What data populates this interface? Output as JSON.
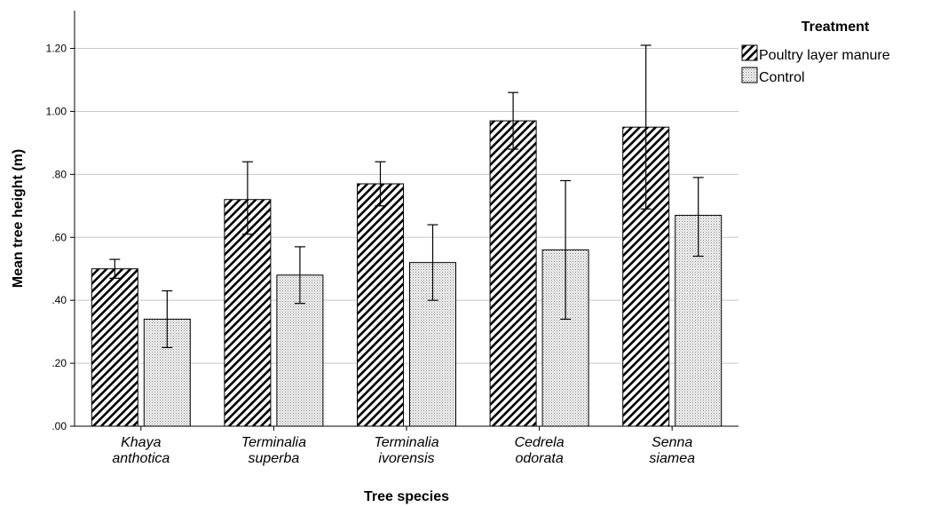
{
  "chart_data": {
    "type": "bar",
    "xlabel": "Tree species",
    "ylabel": "Mean tree height (m)",
    "ylim": [
      0,
      1.32
    ],
    "yticks": [
      0,
      0.2,
      0.4,
      0.6,
      0.8,
      1.0,
      1.2
    ],
    "ytick_labels": [
      ".00",
      ".20",
      ".40",
      ".60",
      ".80",
      "1.00",
      "1.20"
    ],
    "grid": true,
    "legend_title": "Treatment",
    "legend_placement": "top-right",
    "categories": [
      [
        "Khaya",
        "anthotica"
      ],
      [
        "Terminalia",
        "superba"
      ],
      [
        "Terminalia",
        "ivorensis"
      ],
      [
        "Cedrela",
        "odorata"
      ],
      [
        "Senna",
        "siamea"
      ]
    ],
    "series": [
      {
        "name": "Poultry layer manure",
        "pattern": "diagonal-hatch",
        "values": [
          0.5,
          0.72,
          0.77,
          0.97,
          0.95
        ],
        "error_low": [
          0.47,
          0.61,
          0.7,
          0.88,
          0.69
        ],
        "error_high": [
          0.53,
          0.84,
          0.84,
          1.06,
          1.21
        ]
      },
      {
        "name": "Control",
        "pattern": "dots",
        "values": [
          0.34,
          0.48,
          0.52,
          0.56,
          0.67
        ],
        "error_low": [
          0.25,
          0.39,
          0.4,
          0.34,
          0.54
        ],
        "error_high": [
          0.43,
          0.57,
          0.64,
          0.78,
          0.79
        ]
      }
    ],
    "colors": {
      "bar_stroke": "#000000",
      "grid": "#c8c8c8",
      "dot_fill": "#707070"
    }
  }
}
